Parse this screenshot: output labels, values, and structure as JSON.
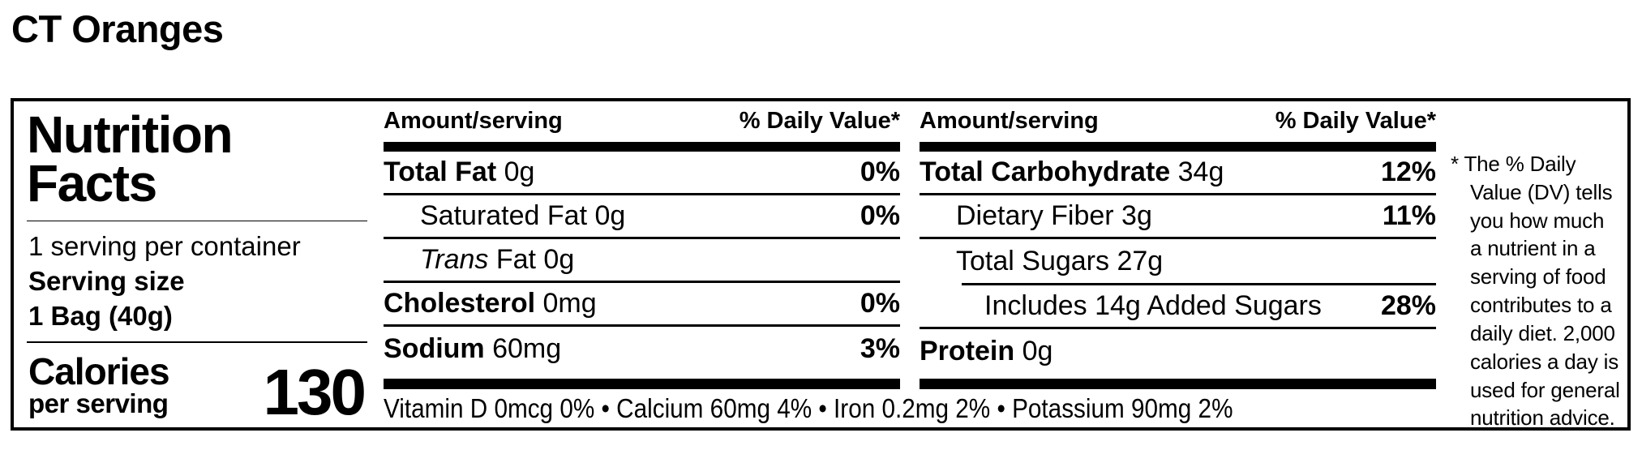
{
  "page_title": "CT Oranges",
  "colors": {
    "text": "#000000",
    "background": "#ffffff"
  },
  "label": {
    "title_line1": "Nutrition",
    "title_line2": "Facts",
    "servings_per_container": "1 serving per container",
    "serving_size_label": "Serving size",
    "serving_size_value": "1 Bag (40g)",
    "calories_label": "Calories",
    "calories_sub": "per serving",
    "calories_value": "130",
    "col_header_amount": "Amount/serving",
    "col_header_dv": "% Daily Value*",
    "columns": [
      {
        "rows": [
          {
            "bold": "Total Fat",
            "text": " 0g",
            "dv": "0%"
          },
          {
            "text": "Saturated Fat 0g",
            "dv": "0%"
          },
          {
            "italic": "Trans",
            "text": " Fat 0g",
            "dv": ""
          },
          {
            "bold": "Cholesterol",
            "text": " 0mg",
            "dv": "0%"
          },
          {
            "bold": "Sodium",
            "text": " 60mg",
            "dv": "3%"
          }
        ]
      },
      {
        "rows": [
          {
            "bold": "Total Carbohydrate",
            "text": " 34g",
            "dv": "12%"
          },
          {
            "text": "Dietary Fiber 3g",
            "dv": "11%"
          },
          {
            "text": "Total Sugars 27g",
            "dv": ""
          },
          {
            "text": "Includes 14g Added Sugars",
            "dv": "28%"
          },
          {
            "bold": "Protein",
            "text": " 0g",
            "dv": ""
          }
        ]
      }
    ],
    "vitamins": "Vitamin D 0mcg 0% • Calcium 60mg 4% • Iron 0.2mg 2% • Potassium 90mg 2%",
    "footnote": "* The % Daily Value (DV) tells you how much a nutrient in a serving of food contributes to a daily diet. 2,000 calories a day is used for general nutrition advice."
  }
}
